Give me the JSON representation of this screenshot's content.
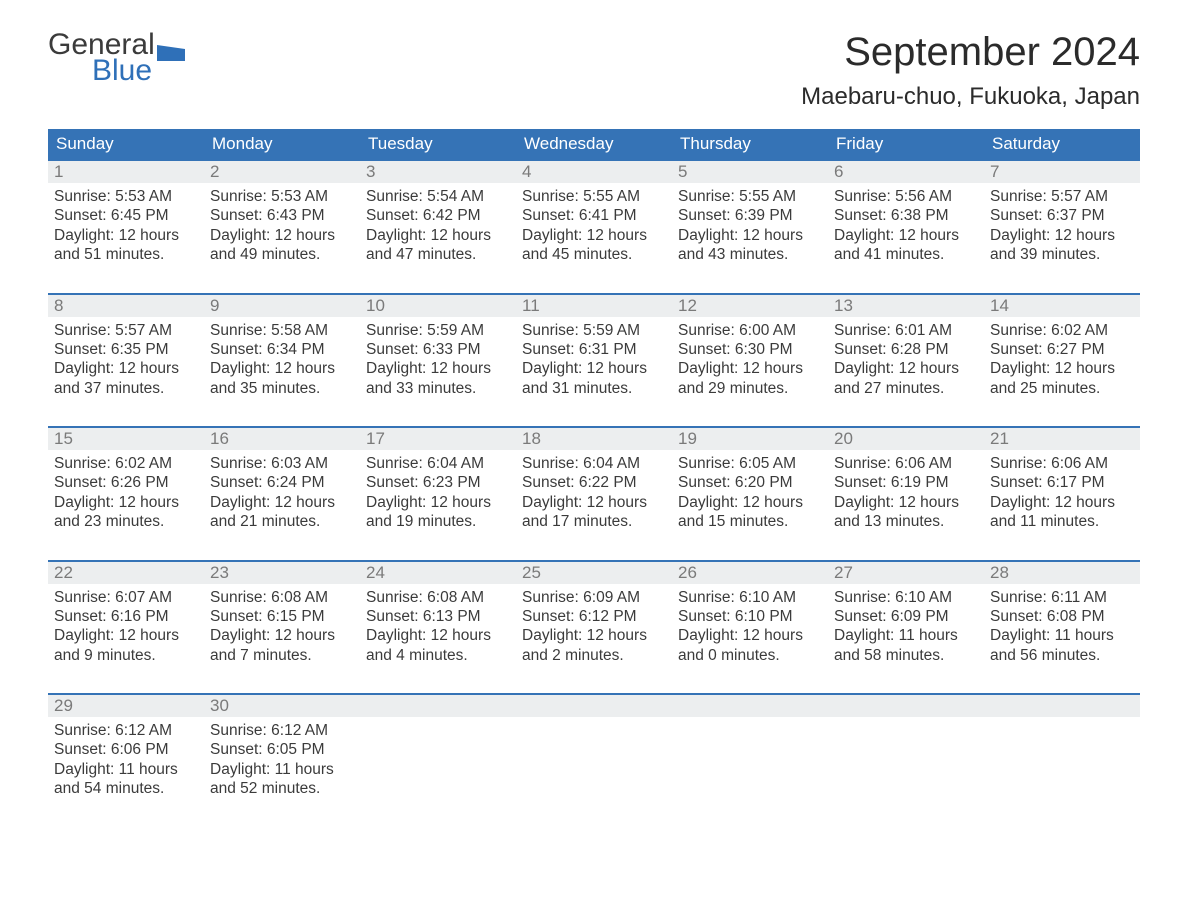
{
  "brand": {
    "word1": "General",
    "word2": "Blue",
    "logo_color": "#2f70b8"
  },
  "title": "September 2024",
  "location": "Maebaru-chuo, Fukuoka, Japan",
  "colors": {
    "header_bg": "#3573b6",
    "header_text": "#ffffff",
    "daynum_bg": "#eceeef",
    "daynum_text": "#7a7a7a",
    "rule": "#3573b6",
    "body_text": "#3b3b3b",
    "page_bg": "#ffffff"
  },
  "day_names": [
    "Sunday",
    "Monday",
    "Tuesday",
    "Wednesday",
    "Thursday",
    "Friday",
    "Saturday"
  ],
  "weeks": [
    [
      {
        "n": "1",
        "sunrise": "5:53 AM",
        "sunset": "6:45 PM",
        "dl_h": "12",
        "dl_m": "51"
      },
      {
        "n": "2",
        "sunrise": "5:53 AM",
        "sunset": "6:43 PM",
        "dl_h": "12",
        "dl_m": "49"
      },
      {
        "n": "3",
        "sunrise": "5:54 AM",
        "sunset": "6:42 PM",
        "dl_h": "12",
        "dl_m": "47"
      },
      {
        "n": "4",
        "sunrise": "5:55 AM",
        "sunset": "6:41 PM",
        "dl_h": "12",
        "dl_m": "45"
      },
      {
        "n": "5",
        "sunrise": "5:55 AM",
        "sunset": "6:39 PM",
        "dl_h": "12",
        "dl_m": "43"
      },
      {
        "n": "6",
        "sunrise": "5:56 AM",
        "sunset": "6:38 PM",
        "dl_h": "12",
        "dl_m": "41"
      },
      {
        "n": "7",
        "sunrise": "5:57 AM",
        "sunset": "6:37 PM",
        "dl_h": "12",
        "dl_m": "39"
      }
    ],
    [
      {
        "n": "8",
        "sunrise": "5:57 AM",
        "sunset": "6:35 PM",
        "dl_h": "12",
        "dl_m": "37"
      },
      {
        "n": "9",
        "sunrise": "5:58 AM",
        "sunset": "6:34 PM",
        "dl_h": "12",
        "dl_m": "35"
      },
      {
        "n": "10",
        "sunrise": "5:59 AM",
        "sunset": "6:33 PM",
        "dl_h": "12",
        "dl_m": "33"
      },
      {
        "n": "11",
        "sunrise": "5:59 AM",
        "sunset": "6:31 PM",
        "dl_h": "12",
        "dl_m": "31"
      },
      {
        "n": "12",
        "sunrise": "6:00 AM",
        "sunset": "6:30 PM",
        "dl_h": "12",
        "dl_m": "29"
      },
      {
        "n": "13",
        "sunrise": "6:01 AM",
        "sunset": "6:28 PM",
        "dl_h": "12",
        "dl_m": "27"
      },
      {
        "n": "14",
        "sunrise": "6:02 AM",
        "sunset": "6:27 PM",
        "dl_h": "12",
        "dl_m": "25"
      }
    ],
    [
      {
        "n": "15",
        "sunrise": "6:02 AM",
        "sunset": "6:26 PM",
        "dl_h": "12",
        "dl_m": "23"
      },
      {
        "n": "16",
        "sunrise": "6:03 AM",
        "sunset": "6:24 PM",
        "dl_h": "12",
        "dl_m": "21"
      },
      {
        "n": "17",
        "sunrise": "6:04 AM",
        "sunset": "6:23 PM",
        "dl_h": "12",
        "dl_m": "19"
      },
      {
        "n": "18",
        "sunrise": "6:04 AM",
        "sunset": "6:22 PM",
        "dl_h": "12",
        "dl_m": "17"
      },
      {
        "n": "19",
        "sunrise": "6:05 AM",
        "sunset": "6:20 PM",
        "dl_h": "12",
        "dl_m": "15"
      },
      {
        "n": "20",
        "sunrise": "6:06 AM",
        "sunset": "6:19 PM",
        "dl_h": "12",
        "dl_m": "13"
      },
      {
        "n": "21",
        "sunrise": "6:06 AM",
        "sunset": "6:17 PM",
        "dl_h": "12",
        "dl_m": "11"
      }
    ],
    [
      {
        "n": "22",
        "sunrise": "6:07 AM",
        "sunset": "6:16 PM",
        "dl_h": "12",
        "dl_m": "9"
      },
      {
        "n": "23",
        "sunrise": "6:08 AM",
        "sunset": "6:15 PM",
        "dl_h": "12",
        "dl_m": "7"
      },
      {
        "n": "24",
        "sunrise": "6:08 AM",
        "sunset": "6:13 PM",
        "dl_h": "12",
        "dl_m": "4"
      },
      {
        "n": "25",
        "sunrise": "6:09 AM",
        "sunset": "6:12 PM",
        "dl_h": "12",
        "dl_m": "2"
      },
      {
        "n": "26",
        "sunrise": "6:10 AM",
        "sunset": "6:10 PM",
        "dl_h": "12",
        "dl_m": "0"
      },
      {
        "n": "27",
        "sunrise": "6:10 AM",
        "sunset": "6:09 PM",
        "dl_h": "11",
        "dl_m": "58"
      },
      {
        "n": "28",
        "sunrise": "6:11 AM",
        "sunset": "6:08 PM",
        "dl_h": "11",
        "dl_m": "56"
      }
    ],
    [
      {
        "n": "29",
        "sunrise": "6:12 AM",
        "sunset": "6:06 PM",
        "dl_h": "11",
        "dl_m": "54"
      },
      {
        "n": "30",
        "sunrise": "6:12 AM",
        "sunset": "6:05 PM",
        "dl_h": "11",
        "dl_m": "52"
      },
      null,
      null,
      null,
      null,
      null
    ]
  ],
  "labels": {
    "sunrise": "Sunrise:",
    "sunset": "Sunset:",
    "daylight_prefix": "Daylight:",
    "hours_word": "hours",
    "and_word": "and",
    "minutes_word": "minutes."
  }
}
